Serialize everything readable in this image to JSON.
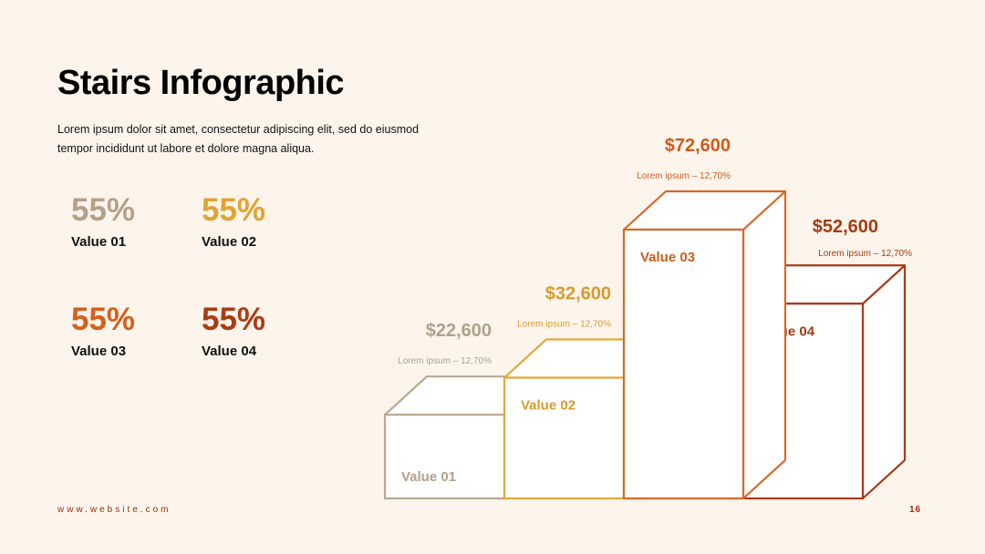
{
  "slide": {
    "title": "Stairs Infographic",
    "subtitle": "Lorem ipsum dolor sit amet, consectetur adipiscing elit, sed do eiusmod tempor incididunt ut labore et dolore magna aliqua.",
    "footer_url": "www.website.com",
    "page_number": "16"
  },
  "stats": [
    {
      "percent": "55%",
      "label": "Value 01",
      "color": "#B5A08A"
    },
    {
      "percent": "55%",
      "label": "Value 02",
      "color": "#E3A232"
    },
    {
      "percent": "55%",
      "label": "Value 03",
      "color": "#D5601E"
    },
    {
      "percent": "55%",
      "label": "Value 04",
      "color": "#A93C15"
    }
  ],
  "chart_data": {
    "type": "bar",
    "categories": [
      "Value 01",
      "Value 02",
      "Value 03",
      "Value 04"
    ],
    "values": [
      22600,
      32600,
      72600,
      52600
    ],
    "amount_labels": [
      "$22,600",
      "$32,600",
      "$72,600",
      "$52,600"
    ],
    "notes": [
      "Lorem ipsum  – 12,70%",
      "Lorem ipsum  – 12,70%",
      "Lorem ipsum  – 12,70%",
      "Lorem ipsum  – 12,70%"
    ],
    "colors": [
      "#B9A890",
      "#E3A83A",
      "#D8682A",
      "#A83A18"
    ],
    "label_colors": [
      "#B0A08C",
      "#D79B2C",
      "#D05A1C",
      "#A53A14"
    ]
  }
}
